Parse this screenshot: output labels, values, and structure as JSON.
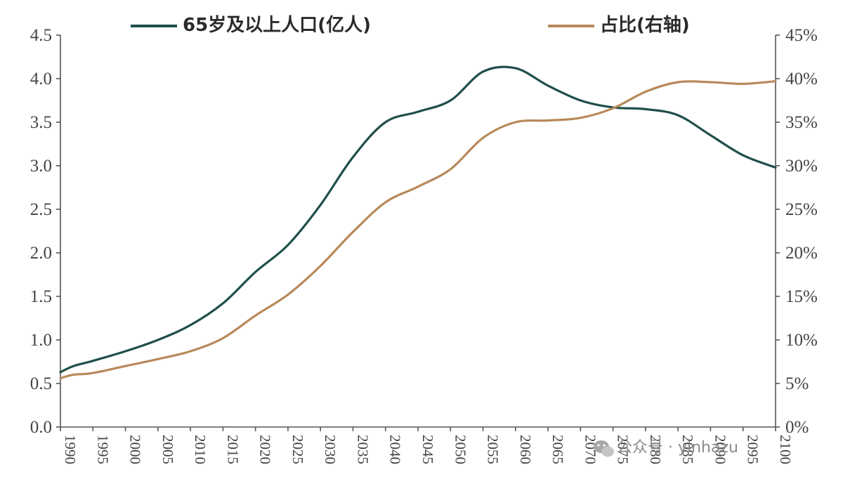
{
  "chart_data": {
    "type": "line",
    "legend_position": "top",
    "grid": false,
    "xlabel": "",
    "ylabel": "",
    "x_ticks": [
      "1990",
      "1995",
      "2000",
      "2005",
      "2010",
      "2015",
      "2020",
      "2025",
      "2030",
      "2035",
      "2040",
      "2045",
      "2050",
      "2055",
      "2060",
      "2065",
      "2070",
      "2075",
      "2080",
      "2085",
      "2090",
      "2095",
      "2100"
    ],
    "y_left": {
      "range": [
        0,
        4.5
      ],
      "ticks": [
        "0.0",
        "0.5",
        "1.0",
        "1.5",
        "2.0",
        "2.5",
        "3.0",
        "3.5",
        "4.0",
        "4.5"
      ]
    },
    "y_right": {
      "range": [
        0,
        45
      ],
      "ticks": [
        "0%",
        "5%",
        "10%",
        "15%",
        "20%",
        "25%",
        "30%",
        "35%",
        "40%",
        "45%"
      ]
    },
    "series": [
      {
        "name": "65岁及以上人口(亿人)",
        "axis": "left",
        "color": "#1f4f4b",
        "x": [
          1990,
          1992,
          1995,
          2000,
          2005,
          2010,
          2015,
          2020,
          2025,
          2030,
          2035,
          2040,
          2045,
          2050,
          2055,
          2060,
          2065,
          2070,
          2075,
          2080,
          2085,
          2090,
          2095,
          2100
        ],
        "values": [
          0.63,
          0.7,
          0.76,
          0.87,
          1.0,
          1.17,
          1.42,
          1.78,
          2.09,
          2.55,
          3.1,
          3.5,
          3.62,
          3.75,
          4.08,
          4.12,
          3.92,
          3.75,
          3.67,
          3.65,
          3.58,
          3.35,
          3.12,
          2.98
        ]
      },
      {
        "name": "占比(右轴)",
        "axis": "right",
        "color": "#b8895a",
        "x": [
          1990,
          1992,
          1995,
          2000,
          2005,
          2010,
          2015,
          2020,
          2025,
          2030,
          2035,
          2040,
          2045,
          2050,
          2055,
          2060,
          2065,
          2070,
          2075,
          2080,
          2085,
          2090,
          2095,
          2100
        ],
        "values": [
          5.6,
          6.0,
          6.2,
          7.0,
          7.8,
          8.7,
          10.2,
          12.8,
          15.2,
          18.5,
          22.4,
          25.8,
          27.6,
          29.6,
          33.2,
          35.0,
          35.2,
          35.5,
          36.6,
          38.5,
          39.6,
          39.6,
          39.4,
          39.7
        ]
      }
    ]
  },
  "watermark": {
    "text": "公众号 · yinhazu",
    "icon": "wechat-icon"
  }
}
